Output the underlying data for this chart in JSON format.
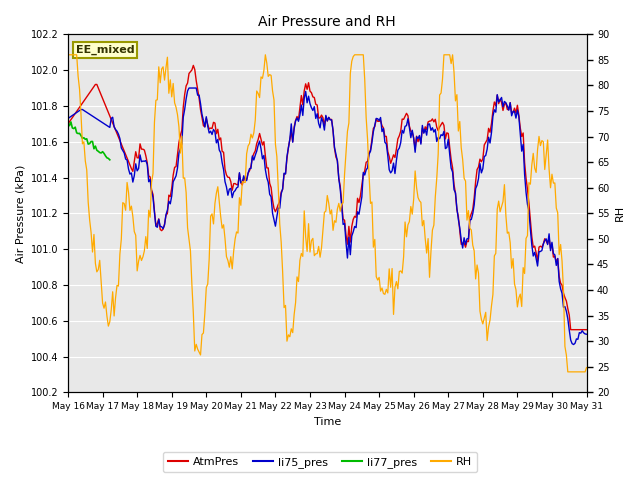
{
  "title": "Air Pressure and RH",
  "xlabel": "Time",
  "ylabel_left": "Air Pressure (kPa)",
  "ylabel_right": "RH",
  "annotation": "EE_mixed",
  "ylim_left": [
    100.2,
    102.2
  ],
  "ylim_right": [
    20,
    90
  ],
  "yticks_left": [
    100.2,
    100.4,
    100.6,
    100.8,
    101.0,
    101.2,
    101.4,
    101.6,
    101.8,
    102.0,
    102.2
  ],
  "yticks_right": [
    20,
    25,
    30,
    35,
    40,
    45,
    50,
    55,
    60,
    65,
    70,
    75,
    80,
    85,
    90
  ],
  "xtick_days": [
    16,
    17,
    18,
    19,
    20,
    21,
    22,
    23,
    24,
    25,
    26,
    27,
    28,
    29,
    30,
    31
  ],
  "xtick_labels": [
    "May 16",
    "May 17",
    "May 18",
    "May 19",
    "May 20",
    "May 21",
    "May 22",
    "May 23",
    "May 24",
    "May 25",
    "May 26",
    "May 27",
    "May 28",
    "May 29",
    "May 30",
    "May 31"
  ],
  "bg_color": "#e8e8e8",
  "grid_color": "#ffffff",
  "line_colors": {
    "AtmPres": "#dd0000",
    "li75_pres": "#0000cc",
    "li77_pres": "#00bb00",
    "RH": "#ffaa00"
  },
  "annotation_bbox": {
    "facecolor": "#ffffcc",
    "edgecolor": "#999900",
    "linewidth": 1.5
  },
  "li77_hours": 30
}
